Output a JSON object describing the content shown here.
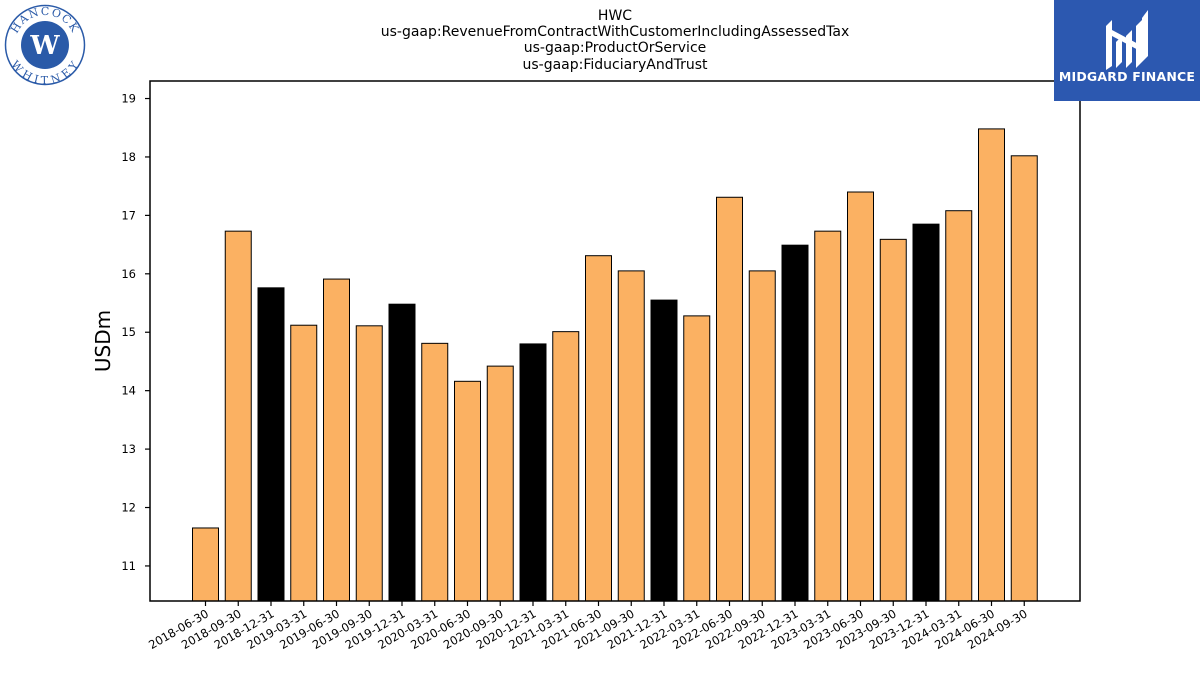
{
  "header": {
    "lines": [
      "HWC",
      "us-gaap:RevenueFromContractWithCustomerIncludingAssessedTax",
      "us-gaap:ProductOrService",
      "us-gaap:FiduciaryAndTrust"
    ]
  },
  "logos": {
    "left": {
      "top_text": "HANCOCK",
      "bottom_text": "WHITNEY",
      "monogram": "W",
      "color": "#2a5aa8"
    },
    "right": {
      "brand_text": "MIDGARD FINANCE",
      "background": "#2c58b0"
    }
  },
  "chart_data": {
    "type": "bar",
    "ylabel": "USDm",
    "ylim": [
      10.4,
      19.3
    ],
    "yticks": [
      11,
      12,
      13,
      14,
      15,
      16,
      17,
      18,
      19
    ],
    "categories": [
      "2018-06-30",
      "2018-09-30",
      "2018-12-31",
      "2019-03-31",
      "2019-06-30",
      "2019-09-30",
      "2019-12-31",
      "2020-03-31",
      "2020-06-30",
      "2020-09-30",
      "2020-12-31",
      "2021-03-31",
      "2021-06-30",
      "2021-09-30",
      "2021-12-31",
      "2022-03-31",
      "2022-06-30",
      "2022-09-30",
      "2022-12-31",
      "2023-03-31",
      "2023-06-30",
      "2023-09-30",
      "2023-12-31",
      "2024-03-31",
      "2024-06-30",
      "2024-09-30"
    ],
    "values": [
      11.65,
      16.73,
      15.76,
      15.12,
      15.91,
      15.11,
      15.48,
      14.81,
      14.16,
      14.42,
      14.8,
      15.01,
      16.31,
      16.05,
      15.55,
      15.28,
      17.31,
      16.05,
      16.49,
      16.73,
      17.4,
      16.59,
      16.85,
      17.08,
      18.48,
      18.02
    ],
    "highlight": [
      false,
      false,
      true,
      false,
      false,
      false,
      true,
      false,
      false,
      false,
      true,
      false,
      false,
      false,
      true,
      false,
      false,
      false,
      true,
      false,
      false,
      false,
      true,
      false,
      false,
      false
    ],
    "colors": {
      "bar": "#fbb162",
      "highlight": "#000000",
      "edge": "#000000"
    }
  }
}
